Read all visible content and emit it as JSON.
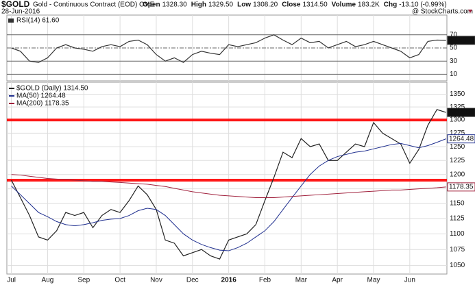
{
  "header": {
    "symbol": "$GOLD",
    "name": "Gold - Continuous Contract (EOD) CME",
    "date": "28-Jun-2016",
    "source": "@ StockCharts.com",
    "quote": [
      {
        "key": "Open",
        "value": "1328.30"
      },
      {
        "key": "High",
        "value": "1329.50"
      },
      {
        "key": "Low",
        "value": "1308.20"
      },
      {
        "key": "Close",
        "value": "1314.50"
      },
      {
        "key": "Volume",
        "value": "183.2K"
      },
      {
        "key": "Chg",
        "value": "-13.10 (-0.99%)"
      }
    ]
  },
  "chart_data": [
    {
      "type": "line",
      "x": [
        0,
        1,
        2,
        3,
        4,
        5,
        6,
        7,
        8,
        9,
        10,
        11,
        12,
        13,
        14,
        15,
        16,
        17,
        18,
        19,
        20,
        21,
        22,
        23,
        24,
        25,
        26,
        27,
        28,
        29,
        30,
        31,
        32,
        33,
        34,
        35,
        36,
        37,
        38,
        39,
        40,
        41,
        42,
        43,
        44,
        45,
        46,
        47,
        48
      ],
      "xlim": [
        -0.5,
        48.1
      ],
      "ylim": [
        0,
        100
      ],
      "yticks": [
        10,
        30,
        50,
        70
      ],
      "grid": true,
      "series": [
        {
          "name": "RSI(14) 61.60",
          "color": "#333333",
          "last_label": "61.60",
          "values": [
            50,
            45,
            30,
            28,
            35,
            50,
            55,
            50,
            48,
            45,
            52,
            55,
            52,
            60,
            62,
            55,
            40,
            30,
            35,
            28,
            40,
            45,
            42,
            40,
            55,
            52,
            55,
            58,
            65,
            70,
            62,
            55,
            65,
            58,
            60,
            50,
            55,
            60,
            52,
            55,
            60,
            55,
            50,
            45,
            35,
            40,
            60,
            62,
            61.6
          ]
        }
      ]
    },
    {
      "type": "line",
      "log": true,
      "x": [
        0,
        1,
        2,
        3,
        4,
        5,
        6,
        7,
        8,
        9,
        10,
        11,
        12,
        13,
        14,
        15,
        16,
        17,
        18,
        19,
        20,
        21,
        22,
        23,
        24,
        25,
        26,
        27,
        28,
        29,
        30,
        31,
        32,
        33,
        34,
        35,
        36,
        37,
        38,
        39,
        40,
        41,
        42,
        43,
        44,
        45,
        46,
        47,
        48
      ],
      "xlim": [
        -0.5,
        48.1
      ],
      "ylim": [
        1037,
        1374
      ],
      "yticks": [
        1050,
        1075,
        1100,
        1125,
        1150,
        1175,
        1200,
        1225,
        1250,
        1275,
        1300,
        1325,
        1350
      ],
      "xticks": [
        {
          "value": 0,
          "label": "Jul"
        },
        {
          "value": 4,
          "label": "Aug"
        },
        {
          "value": 8,
          "label": "Sep"
        },
        {
          "value": 12,
          "label": "Oct"
        },
        {
          "value": 16,
          "label": "Nov"
        },
        {
          "value": 20,
          "label": "Dec"
        },
        {
          "value": 24,
          "label": "2016"
        },
        {
          "value": 28,
          "label": "Feb"
        },
        {
          "value": 32,
          "label": "Mar"
        },
        {
          "value": 36,
          "label": "Apr"
        },
        {
          "value": 40,
          "label": "May"
        },
        {
          "value": 44,
          "label": "Jun"
        }
      ],
      "grid": true,
      "horizontal_lines": [
        1300,
        1190
      ],
      "horizontal_line_color": "#ff0000",
      "series": [
        {
          "name": "$GOLD (Daily) 1314.50",
          "color": "#222222",
          "last_label": "1314.50",
          "values": [
            1190,
            1160,
            1130,
            1095,
            1090,
            1105,
            1135,
            1130,
            1135,
            1110,
            1130,
            1140,
            1135,
            1155,
            1180,
            1165,
            1140,
            1090,
            1085,
            1065,
            1070,
            1075,
            1065,
            1060,
            1090,
            1095,
            1100,
            1115,
            1155,
            1195,
            1240,
            1230,
            1265,
            1250,
            1255,
            1225,
            1225,
            1240,
            1255,
            1250,
            1295,
            1275,
            1265,
            1255,
            1220,
            1245,
            1290,
            1320,
            1314.5
          ]
        },
        {
          "name": "MA(50) 1264.48",
          "color": "#1f2f8f",
          "last_label": "1264.48",
          "values": [
            1180,
            1165,
            1150,
            1135,
            1128,
            1120,
            1115,
            1113,
            1115,
            1118,
            1122,
            1124,
            1125,
            1130,
            1138,
            1142,
            1140,
            1130,
            1115,
            1100,
            1090,
            1083,
            1078,
            1074,
            1073,
            1078,
            1085,
            1095,
            1105,
            1120,
            1140,
            1160,
            1180,
            1200,
            1215,
            1225,
            1232,
            1236,
            1240,
            1242,
            1246,
            1250,
            1254,
            1256,
            1252,
            1248,
            1252,
            1258,
            1264.48
          ]
        },
        {
          "name": "MA(200) 1178.35",
          "color": "#a0203c",
          "last_label": "1178.35",
          "values": [
            1200,
            1199,
            1197,
            1195,
            1193,
            1192,
            1191,
            1190,
            1189,
            1188,
            1188,
            1187,
            1186,
            1185,
            1184,
            1183,
            1181,
            1179,
            1176,
            1173,
            1170,
            1168,
            1166,
            1164,
            1163,
            1162,
            1161,
            1160,
            1160,
            1160,
            1161,
            1162,
            1163,
            1164,
            1165,
            1166,
            1167,
            1168,
            1169,
            1170,
            1171,
            1172,
            1173,
            1173,
            1174,
            1175,
            1176,
            1177,
            1178.35
          ]
        }
      ]
    }
  ]
}
